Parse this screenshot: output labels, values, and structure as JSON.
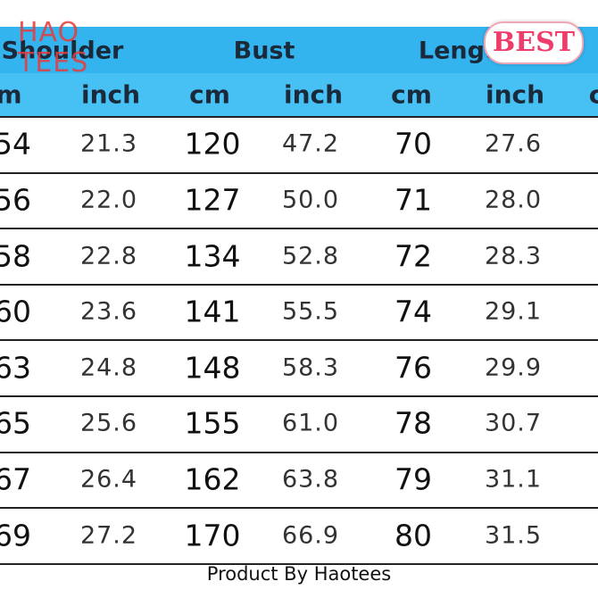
{
  "logo": {
    "line1": "HAO",
    "line2": "TEES"
  },
  "badge": "BEST",
  "table": {
    "headers": [
      "Shoulder",
      "Bust",
      "Length"
    ],
    "units": [
      "m",
      "inch",
      "cm",
      "inch",
      "cm",
      "inch",
      "c"
    ],
    "rows": [
      [
        "54",
        "21.3",
        "120",
        "47.2",
        "70",
        "27.6"
      ],
      [
        "56",
        "22.0",
        "127",
        "50.0",
        "71",
        "28.0"
      ],
      [
        "58",
        "22.8",
        "134",
        "52.8",
        "72",
        "28.3"
      ],
      [
        "60",
        "23.6",
        "141",
        "55.5",
        "74",
        "29.1"
      ],
      [
        "63",
        "24.8",
        "148",
        "58.3",
        "76",
        "29.9"
      ],
      [
        "65",
        "25.6",
        "155",
        "61.0",
        "78",
        "30.7"
      ],
      [
        "67",
        "26.4",
        "162",
        "63.8",
        "79",
        "31.1"
      ],
      [
        "69",
        "27.2",
        "170",
        "66.9",
        "80",
        "31.5"
      ]
    ]
  },
  "footer": "Product By Haotees"
}
